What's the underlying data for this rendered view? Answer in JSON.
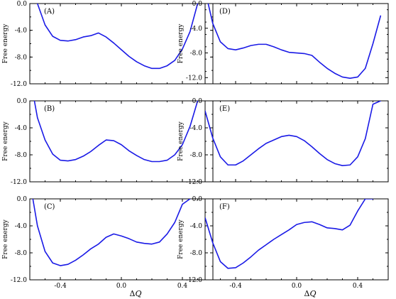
{
  "figure": {
    "curve_color": "#1a1ae6",
    "ylabel": "Free energy",
    "xlabel_symbol": "Δ",
    "xlabel_var": "Q",
    "xtick_labels": [
      "-0.4",
      "0.0",
      "0.4"
    ],
    "ytick_labels": [
      "0.0",
      "-4.0",
      "-8.0",
      "-12.0"
    ]
  },
  "chart_data": [
    {
      "type": "line",
      "panel": "(A)",
      "xlim": [
        -0.6,
        0.6
      ],
      "ylim": [
        -12,
        0
      ],
      "xticks": [
        -0.4,
        0.0,
        0.4
      ],
      "yticks": [
        0,
        -4,
        -8,
        -12
      ],
      "ytick_labels": [
        "0.0",
        "-4.0",
        "-8.0",
        "-12.0"
      ],
      "series": [
        {
          "x": [
            -0.55,
            -0.5,
            -0.45,
            -0.4,
            -0.35,
            -0.3,
            -0.25,
            -0.2,
            -0.15,
            -0.1,
            -0.05,
            0.0,
            0.05,
            0.1,
            0.15,
            0.2,
            0.25,
            0.3,
            0.35,
            0.4,
            0.45,
            0.5
          ],
          "y": [
            0.0,
            -3.2,
            -4.9,
            -5.5,
            -5.6,
            -5.4,
            -5.0,
            -4.8,
            -4.4,
            -5.0,
            -5.9,
            -6.9,
            -7.9,
            -8.7,
            -9.3,
            -9.7,
            -9.7,
            -9.3,
            -8.5,
            -6.8,
            -4.2,
            0.0
          ]
        }
      ]
    },
    {
      "type": "line",
      "panel": "(D)",
      "xlim": [
        -0.6,
        0.6
      ],
      "ylim": [
        -13,
        0
      ],
      "xticks": [
        -0.4,
        0.0,
        0.4
      ],
      "yticks": [
        0,
        -4,
        -8,
        -12
      ],
      "ytick_labels": [
        "0.0",
        "-4.0",
        "-8.0",
        "-12.0"
      ],
      "series": [
        {
          "x": [
            -0.58,
            -0.55,
            -0.5,
            -0.45,
            -0.4,
            -0.35,
            -0.3,
            -0.25,
            -0.2,
            -0.15,
            -0.1,
            -0.05,
            0.0,
            0.05,
            0.1,
            0.15,
            0.2,
            0.25,
            0.3,
            0.35,
            0.4,
            0.45,
            0.5,
            0.55
          ],
          "y": [
            0.0,
            -3.2,
            -6.2,
            -7.3,
            -7.5,
            -7.2,
            -6.8,
            -6.6,
            -6.6,
            -7.0,
            -7.5,
            -7.9,
            -8.0,
            -8.1,
            -8.4,
            -9.5,
            -10.5,
            -11.3,
            -11.9,
            -12.1,
            -11.9,
            -10.5,
            -6.5,
            -2.0
          ]
        }
      ]
    },
    {
      "type": "line",
      "panel": "(B)",
      "xlim": [
        -0.6,
        0.6
      ],
      "ylim": [
        -12,
        0
      ],
      "xticks": [
        -0.4,
        0.0,
        0.4
      ],
      "yticks": [
        0,
        -4,
        -8,
        -12
      ],
      "ytick_labels": [
        "0.0",
        "-4.0",
        "-8.0",
        "-12.0"
      ],
      "series": [
        {
          "x": [
            -0.57,
            -0.55,
            -0.5,
            -0.45,
            -0.4,
            -0.35,
            -0.3,
            -0.25,
            -0.2,
            -0.15,
            -0.1,
            -0.05,
            0.0,
            0.05,
            0.1,
            0.15,
            0.2,
            0.25,
            0.3,
            0.35,
            0.4,
            0.45,
            0.5
          ],
          "y": [
            0.0,
            -2.5,
            -5.8,
            -7.9,
            -8.8,
            -8.9,
            -8.7,
            -8.2,
            -7.5,
            -6.6,
            -5.8,
            -5.9,
            -6.5,
            -7.4,
            -8.1,
            -8.7,
            -9.0,
            -9.0,
            -8.8,
            -8.0,
            -6.5,
            -3.8,
            0.0
          ]
        }
      ]
    },
    {
      "type": "line",
      "panel": "(E)",
      "xlim": [
        -0.6,
        0.6
      ],
      "ylim": [
        -12,
        0
      ],
      "xticks": [
        -0.4,
        0.0,
        0.4
      ],
      "yticks": [
        0,
        -4,
        -8,
        -12
      ],
      "ytick_labels": [
        "0.0",
        "-4.0",
        "-8.0",
        "-12.0"
      ],
      "series": [
        {
          "x": [
            -0.6,
            -0.55,
            -0.5,
            -0.45,
            -0.4,
            -0.35,
            -0.3,
            -0.25,
            -0.2,
            -0.15,
            -0.1,
            -0.05,
            0.0,
            0.05,
            0.1,
            0.15,
            0.2,
            0.25,
            0.3,
            0.35,
            0.4,
            0.45,
            0.5,
            0.55
          ],
          "y": [
            -1.5,
            -5.5,
            -8.3,
            -9.5,
            -9.5,
            -8.9,
            -8.0,
            -7.1,
            -6.3,
            -5.8,
            -5.3,
            -5.1,
            -5.3,
            -5.9,
            -6.8,
            -7.8,
            -8.7,
            -9.3,
            -9.6,
            -9.5,
            -8.3,
            -5.6,
            -0.5,
            0.0
          ]
        }
      ]
    },
    {
      "type": "line",
      "panel": "(C)",
      "xlim": [
        -0.6,
        0.6
      ],
      "ylim": [
        -12,
        0
      ],
      "xticks": [
        -0.4,
        0.0,
        0.4
      ],
      "yticks": [
        0,
        -4,
        -8,
        -12
      ],
      "ytick_labels": [
        "0.0",
        "-4.0",
        "-8.0",
        "-12.0"
      ],
      "series": [
        {
          "x": [
            -0.58,
            -0.55,
            -0.5,
            -0.45,
            -0.4,
            -0.35,
            -0.3,
            -0.25,
            -0.2,
            -0.15,
            -0.1,
            -0.05,
            0.0,
            0.05,
            0.1,
            0.15,
            0.2,
            0.25,
            0.3,
            0.35,
            0.4,
            0.45
          ],
          "y": [
            0.0,
            -4.0,
            -7.8,
            -9.5,
            -9.9,
            -9.7,
            -9.1,
            -8.3,
            -7.4,
            -6.7,
            -5.7,
            -5.2,
            -5.5,
            -5.9,
            -6.4,
            -6.6,
            -6.7,
            -6.4,
            -5.2,
            -3.5,
            -0.8,
            0.0
          ]
        }
      ]
    },
    {
      "type": "line",
      "panel": "(F)",
      "xlim": [
        -0.6,
        0.6
      ],
      "ylim": [
        -12,
        0
      ],
      "xticks": [
        -0.4,
        0.0,
        0.4
      ],
      "yticks": [
        0,
        -4,
        -8,
        -12
      ],
      "ytick_labels": [
        "0.0",
        "-4.0",
        "-8.0",
        "-12.0"
      ],
      "series": [
        {
          "x": [
            -0.6,
            -0.55,
            -0.5,
            -0.45,
            -0.4,
            -0.35,
            -0.3,
            -0.25,
            -0.2,
            -0.15,
            -0.1,
            -0.05,
            0.0,
            0.05,
            0.1,
            0.15,
            0.2,
            0.25,
            0.3,
            0.35,
            0.4,
            0.45,
            0.5
          ],
          "y": [
            -2.8,
            -6.5,
            -9.3,
            -10.3,
            -10.2,
            -9.5,
            -8.6,
            -7.6,
            -6.8,
            -6.0,
            -5.3,
            -4.6,
            -3.8,
            -3.5,
            -3.4,
            -3.8,
            -4.3,
            -4.4,
            -4.6,
            -3.9,
            -1.8,
            0.0,
            0.0
          ]
        }
      ]
    }
  ]
}
